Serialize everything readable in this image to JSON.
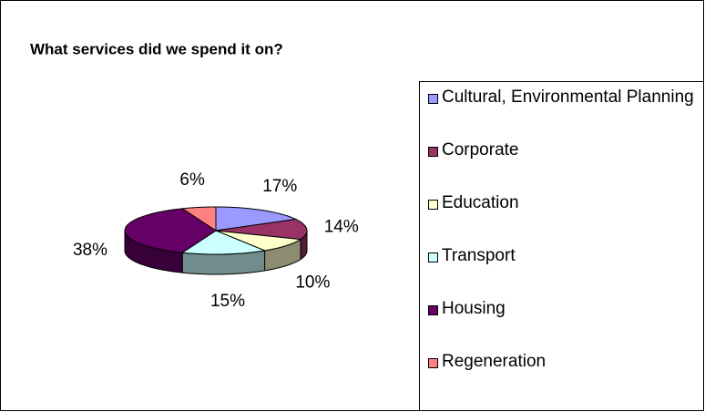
{
  "chart_data": {
    "type": "pie",
    "title": "What services did we spend it on?",
    "categories": [
      "Cultural, Environmental Planning",
      "Corporate",
      "Education",
      "Transport",
      "Housing",
      "Regeneration"
    ],
    "values": [
      17,
      14,
      10,
      15,
      38,
      6
    ],
    "value_labels": [
      "17%",
      "14%",
      "10%",
      "15%",
      "38%",
      "6%"
    ],
    "colors": [
      "#9999ff",
      "#993366",
      "#ffffcc",
      "#ccffff",
      "#660066",
      "#ff8080"
    ],
    "legend": "right"
  }
}
